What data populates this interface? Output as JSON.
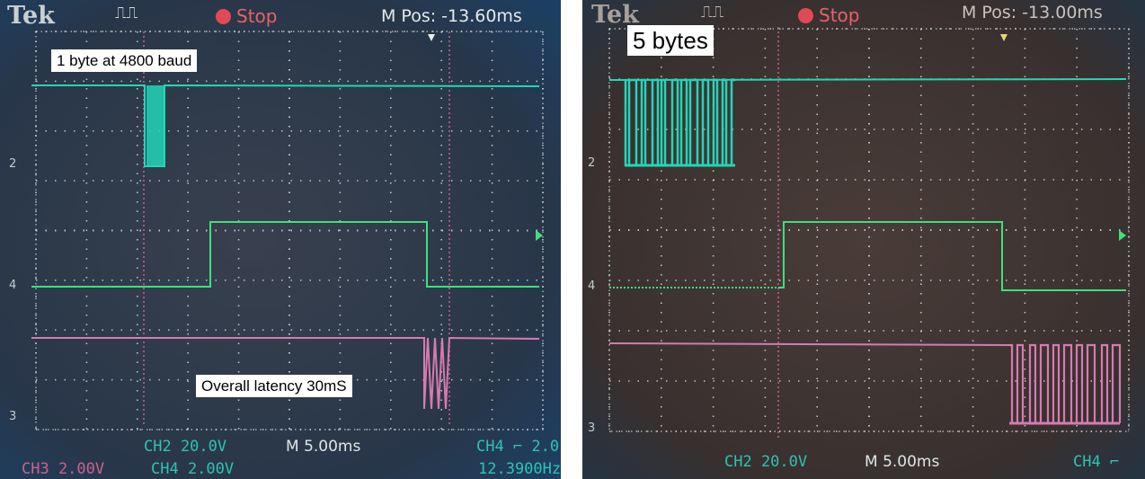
{
  "left_scope": {
    "brand": "Tek",
    "trigger_icon": "pulse-trigger-icon",
    "run_state": "Stop",
    "run_state_color": "#e14a55",
    "m_pos": "M Pos: -13.60ms",
    "annotation_top": "1 byte at 4800 baud",
    "annotation_bottom": "Overall latency 30mS",
    "ch2_readout": "CH2  20.0V",
    "ch3_readout": "CH3  2.00V",
    "ch4_scale_readout": "CH4  2.00V",
    "timebase": "M 5.00ms",
    "ch4_trigger": "CH4 ⌐ 2.0",
    "frequency": "12.3900Hz",
    "channel_markers": [
      "2",
      "4",
      "3"
    ]
  },
  "right_scope": {
    "brand": "Tek",
    "trigger_icon": "pulse-trigger-icon",
    "run_state": "Stop",
    "run_state_color": "#e14a55",
    "m_pos": "M Pos: -13.00ms",
    "annotation_top": "5 bytes",
    "ch2_readout": "CH2  20.0V",
    "timebase": "M 5.00ms",
    "ch4_trigger": "CH4 ⌐",
    "channel_markers": [
      "2",
      "4",
      "3"
    ]
  },
  "colors": {
    "screen_bg": "#2c3038",
    "grid": "#d8dcdc",
    "trace_ch2": "#22d6b8",
    "trace_ch4": "#3fe07a",
    "trace_ch3": "#d77ab0",
    "cursor": "#c7609a"
  }
}
